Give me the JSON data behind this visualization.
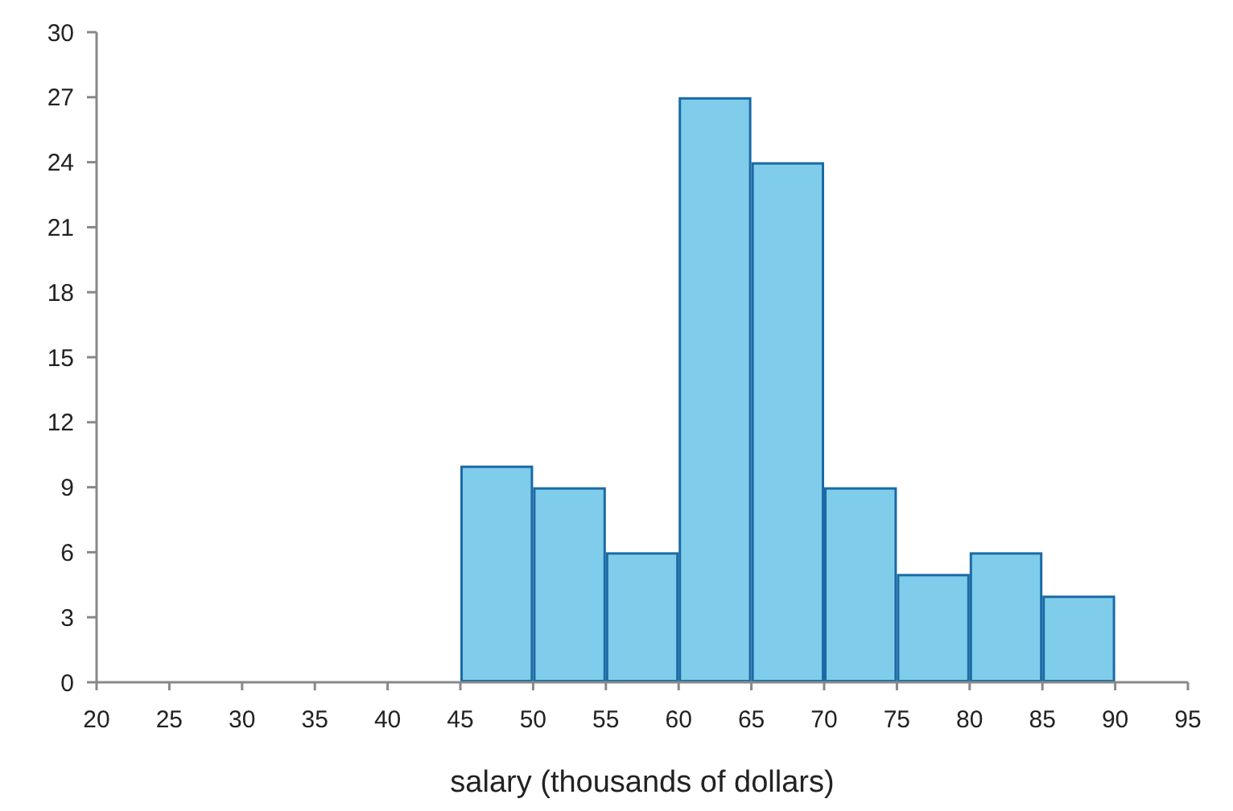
{
  "chart_data": {
    "type": "histogram",
    "xlabel": "salary (thousands of dollars)",
    "bins": [
      45,
      50,
      55,
      60,
      65,
      70,
      75,
      80,
      85,
      90
    ],
    "values": [
      10,
      9,
      6,
      27,
      24,
      9,
      5,
      6,
      4
    ],
    "color": "#7fcdea",
    "xlim": [
      20,
      95
    ],
    "xticks": [
      20,
      25,
      30,
      35,
      40,
      45,
      50,
      55,
      60,
      65,
      70,
      75,
      80,
      85,
      90,
      95
    ],
    "ylim": [
      0,
      30
    ],
    "yticks": [
      0,
      3,
      6,
      9,
      12,
      15,
      18,
      21,
      24,
      27,
      30
    ],
    "grid": false
  }
}
